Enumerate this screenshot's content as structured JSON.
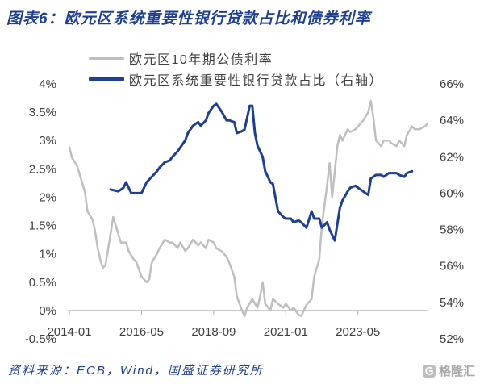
{
  "source": "资料来源：ECB，Wind，国盛证券研究所",
  "watermark": {
    "text": "格隆汇",
    "icon": "gelonghui-logo-icon"
  },
  "colors": {
    "brand": "#1F3F8F",
    "axis": "#A6A6A6",
    "text": "#404040",
    "watermark": "#BDBDBD"
  },
  "chart_data": {
    "type": "line",
    "title": "图表6：欧元区系统重要性银行贷款占比和债券利率",
    "legend": "top",
    "grid": false,
    "x_axis": {
      "ticks": [
        "2014-01",
        "2016-05",
        "2018-09",
        "2021-01",
        "2023-05"
      ],
      "range": [
        "2014-01",
        "2025-08"
      ]
    },
    "y_left": {
      "range": [
        -0.5,
        4
      ],
      "ticks": [
        {
          "value": 4,
          "label": "4%"
        },
        {
          "value": 3.5,
          "label": "3.5%"
        },
        {
          "value": 3,
          "label": "3%"
        },
        {
          "value": 2.5,
          "label": "2.5%"
        },
        {
          "value": 2,
          "label": "2%"
        },
        {
          "value": 1.5,
          "label": "1.5%"
        },
        {
          "value": 1,
          "label": "1%"
        },
        {
          "value": 0.5,
          "label": "0.5%"
        },
        {
          "value": 0,
          "label": "0%"
        },
        {
          "value": -0.5,
          "label": "-0.5%"
        }
      ]
    },
    "y_right": {
      "range": [
        52,
        66
      ],
      "ticks": [
        {
          "value": 66,
          "label": "66%"
        },
        {
          "value": 64,
          "label": "64%"
        },
        {
          "value": 62,
          "label": "62%"
        },
        {
          "value": 60,
          "label": "60%"
        },
        {
          "value": 58,
          "label": "58%"
        },
        {
          "value": 56,
          "label": "56%"
        },
        {
          "value": 54,
          "label": "54%"
        },
        {
          "value": 52,
          "label": "52%"
        }
      ]
    },
    "series": [
      {
        "name": "欧元区10年期公债利率",
        "axis": "left",
        "color": "#BFBFBF",
        "points": [
          [
            "2014-01",
            2.88
          ],
          [
            "2014-02",
            2.7
          ],
          [
            "2014-04",
            2.55
          ],
          [
            "2014-05",
            2.4
          ],
          [
            "2014-07",
            2.1
          ],
          [
            "2014-08",
            1.75
          ],
          [
            "2014-10",
            1.6
          ],
          [
            "2014-11",
            1.4
          ],
          [
            "2014-12",
            1.1
          ],
          [
            "2015-01",
            0.9
          ],
          [
            "2015-02",
            0.75
          ],
          [
            "2015-03",
            0.8
          ],
          [
            "2015-05",
            1.35
          ],
          [
            "2015-06",
            1.65
          ],
          [
            "2015-07",
            1.5
          ],
          [
            "2015-08",
            1.35
          ],
          [
            "2015-09",
            1.2
          ],
          [
            "2015-11",
            1.2
          ],
          [
            "2015-12",
            1.05
          ],
          [
            "2016-02",
            0.9
          ],
          [
            "2016-03",
            0.85
          ],
          [
            "2016-05",
            0.6
          ],
          [
            "2016-07",
            0.5
          ],
          [
            "2016-08",
            0.55
          ],
          [
            "2016-09",
            0.85
          ],
          [
            "2016-11",
            1.0
          ],
          [
            "2016-12",
            1.1
          ],
          [
            "2017-02",
            1.25
          ],
          [
            "2017-04",
            1.2
          ],
          [
            "2017-05",
            1.2
          ],
          [
            "2017-07",
            1.1
          ],
          [
            "2017-08",
            1.2
          ],
          [
            "2017-10",
            1.05
          ],
          [
            "2017-11",
            1.1
          ],
          [
            "2018-01",
            1.25
          ],
          [
            "2018-03",
            1.15
          ],
          [
            "2018-04",
            1.2
          ],
          [
            "2018-06",
            1.1
          ],
          [
            "2018-07",
            1.25
          ],
          [
            "2018-09",
            1.2
          ],
          [
            "2018-10",
            1.1
          ],
          [
            "2018-12",
            1.05
          ],
          [
            "2019-02",
            0.95
          ],
          [
            "2019-03",
            0.85
          ],
          [
            "2019-05",
            0.6
          ],
          [
            "2019-06",
            0.25
          ],
          [
            "2019-08",
            0.0
          ],
          [
            "2019-09",
            -0.1
          ],
          [
            "2019-10",
            0.05
          ],
          [
            "2019-12",
            0.2
          ],
          [
            "2020-02",
            0.05
          ],
          [
            "2020-03",
            0.25
          ],
          [
            "2020-04",
            0.5
          ],
          [
            "2020-05",
            0.12
          ],
          [
            "2020-07",
            0.0
          ],
          [
            "2020-08",
            0.2
          ],
          [
            "2020-10",
            0.12
          ],
          [
            "2020-12",
            0.05
          ],
          [
            "2021-01",
            0.12
          ],
          [
            "2021-03",
            0.0
          ],
          [
            "2021-04",
            0.05
          ],
          [
            "2021-06",
            -0.08
          ],
          [
            "2021-07",
            -0.1
          ],
          [
            "2021-09",
            0.1
          ],
          [
            "2021-11",
            0.2
          ],
          [
            "2021-12",
            0.6
          ],
          [
            "2022-02",
            0.9
          ],
          [
            "2022-03",
            1.5
          ],
          [
            "2022-05",
            2.2
          ],
          [
            "2022-06",
            2.6
          ],
          [
            "2022-07",
            2.0
          ],
          [
            "2022-09",
            2.9
          ],
          [
            "2022-10",
            3.1
          ],
          [
            "2022-11",
            3.0
          ],
          [
            "2023-01",
            3.2
          ],
          [
            "2023-02",
            3.15
          ],
          [
            "2023-04",
            3.2
          ],
          [
            "2023-05",
            3.25
          ],
          [
            "2023-07",
            3.35
          ],
          [
            "2023-09",
            3.5
          ],
          [
            "2023-10",
            3.7
          ],
          [
            "2023-11",
            3.4
          ],
          [
            "2023-12",
            3.0
          ],
          [
            "2024-02",
            2.9
          ],
          [
            "2024-03",
            3.0
          ],
          [
            "2024-05",
            3.0
          ],
          [
            "2024-06",
            2.95
          ],
          [
            "2024-08",
            2.9
          ],
          [
            "2024-09",
            3.0
          ],
          [
            "2024-11",
            2.9
          ],
          [
            "2024-12",
            3.1
          ],
          [
            "2025-02",
            3.25
          ],
          [
            "2025-03",
            3.2
          ],
          [
            "2025-05",
            3.2
          ],
          [
            "2025-07",
            3.25
          ],
          [
            "2025-08",
            3.3
          ]
        ]
      },
      {
        "name": "欧元区系统重要性银行贷款占比（右轴）",
        "axis": "right",
        "color": "#1F3F8F",
        "points": [
          [
            "2015-05",
            60.2
          ],
          [
            "2015-08",
            60.1
          ],
          [
            "2015-10",
            60.3
          ],
          [
            "2015-11",
            60.6
          ],
          [
            "2016-01",
            60.0
          ],
          [
            "2016-03",
            60.0
          ],
          [
            "2016-05",
            60.0
          ],
          [
            "2016-07",
            60.6
          ],
          [
            "2016-09",
            60.9
          ],
          [
            "2016-11",
            61.2
          ],
          [
            "2016-12",
            61.4
          ],
          [
            "2017-02",
            61.7
          ],
          [
            "2017-04",
            61.8
          ],
          [
            "2017-05",
            62.0
          ],
          [
            "2017-07",
            62.3
          ],
          [
            "2017-08",
            62.5
          ],
          [
            "2017-10",
            62.9
          ],
          [
            "2017-11",
            63.3
          ],
          [
            "2018-01",
            63.7
          ],
          [
            "2018-03",
            63.9
          ],
          [
            "2018-04",
            63.7
          ],
          [
            "2018-06",
            64.0
          ],
          [
            "2018-07",
            64.4
          ],
          [
            "2018-09",
            64.8
          ],
          [
            "2018-10",
            64.9
          ],
          [
            "2018-12",
            64.5
          ],
          [
            "2019-02",
            64.0
          ],
          [
            "2019-03",
            64.0
          ],
          [
            "2019-05",
            63.9
          ],
          [
            "2019-06",
            63.3
          ],
          [
            "2019-08",
            63.4
          ],
          [
            "2019-09",
            63.5
          ],
          [
            "2019-11",
            64.8
          ],
          [
            "2019-12",
            64.8
          ],
          [
            "2020-01",
            63.3
          ],
          [
            "2020-02",
            62.6
          ],
          [
            "2020-04",
            62.0
          ],
          [
            "2020-05",
            61.2
          ],
          [
            "2020-07",
            60.6
          ],
          [
            "2020-08",
            60.5
          ],
          [
            "2020-10",
            59.0
          ],
          [
            "2020-12",
            58.7
          ],
          [
            "2021-01",
            58.6
          ],
          [
            "2021-03",
            58.6
          ],
          [
            "2021-04",
            58.4
          ],
          [
            "2021-06",
            58.5
          ],
          [
            "2021-07",
            58.4
          ],
          [
            "2021-09",
            58.1
          ],
          [
            "2021-11",
            59.0
          ],
          [
            "2021-12",
            58.6
          ],
          [
            "2022-02",
            58.6
          ],
          [
            "2022-03",
            58.1
          ],
          [
            "2022-05",
            58.4
          ],
          [
            "2022-06",
            58.0
          ],
          [
            "2022-08",
            57.4
          ],
          [
            "2022-10",
            59.2
          ],
          [
            "2022-11",
            59.6
          ],
          [
            "2023-01",
            60.1
          ],
          [
            "2023-02",
            60.3
          ],
          [
            "2023-04",
            60.4
          ],
          [
            "2023-05",
            60.3
          ],
          [
            "2023-07",
            60.1
          ],
          [
            "2023-09",
            59.9
          ],
          [
            "2023-10",
            60.8
          ],
          [
            "2023-12",
            61.0
          ],
          [
            "2024-02",
            61.0
          ],
          [
            "2024-03",
            60.9
          ],
          [
            "2024-05",
            61.1
          ],
          [
            "2024-06",
            61.1
          ],
          [
            "2024-08",
            61.1
          ],
          [
            "2024-09",
            61.0
          ],
          [
            "2024-11",
            60.9
          ],
          [
            "2024-12",
            61.1
          ],
          [
            "2025-02",
            61.2
          ]
        ]
      }
    ]
  }
}
